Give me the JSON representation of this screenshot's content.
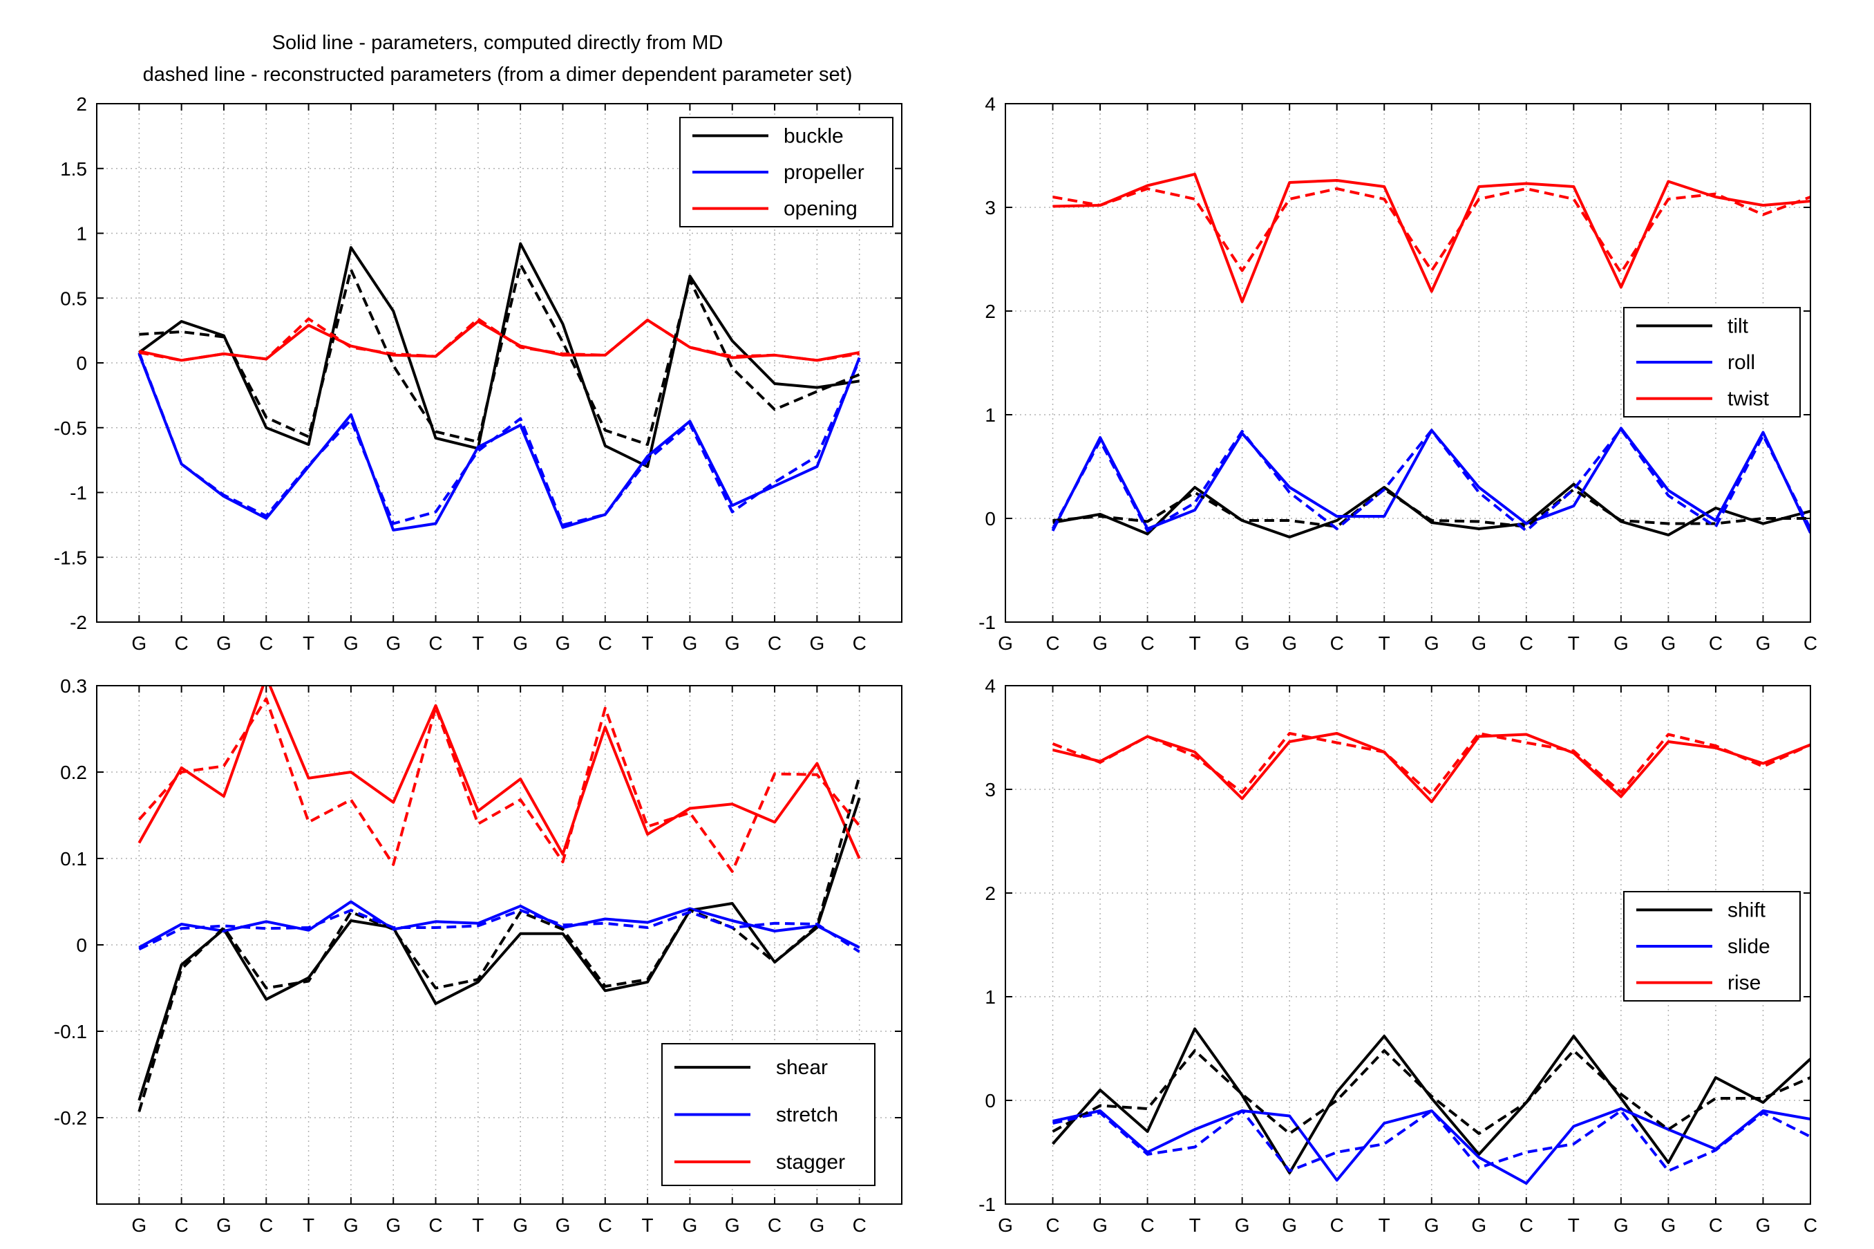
{
  "header": {
    "line1": "Solid line - parameters, computed directly from MD",
    "line2": "dashed line - reconstructed parameters (from a dimer dependent parameter set)"
  },
  "colors": {
    "black": "#000000",
    "blue": "#0000ff",
    "red": "#ff0000",
    "grid": "#b0b0b0"
  },
  "chart_data": [
    {
      "type": "line",
      "categories": [
        "G",
        "C",
        "G",
        "C",
        "T",
        "G",
        "G",
        "C",
        "T",
        "G",
        "G",
        "C",
        "T",
        "G",
        "G",
        "C",
        "G",
        "C"
      ],
      "x": [
        1,
        2,
        3,
        4,
        5,
        6,
        7,
        8,
        9,
        10,
        11,
        12,
        13,
        14,
        15,
        16,
        17,
        18
      ],
      "xlim": [
        0,
        19
      ],
      "ylim": [
        -2,
        2
      ],
      "yticks": [
        -2,
        -1.5,
        -1,
        -0.5,
        0,
        0.5,
        1,
        1.5,
        2
      ],
      "ytick_labels": [
        "-2",
        "-1.5",
        "-1",
        "-0.5",
        "0",
        "0.5",
        "1",
        "1.5",
        "2"
      ],
      "grid": true,
      "legend_position": "top-right",
      "series": [
        {
          "name": "buckle",
          "color": "#000000",
          "style": "solid",
          "values": [
            0.08,
            0.32,
            0.21,
            -0.5,
            -0.63,
            0.89,
            0.4,
            -0.58,
            -0.66,
            0.92,
            0.3,
            -0.64,
            -0.8,
            0.67,
            0.17,
            -0.16,
            -0.19,
            -0.14
          ]
        },
        {
          "name": "propeller",
          "color": "#0000ff",
          "style": "solid",
          "values": [
            0.07,
            -0.78,
            -1.03,
            -1.2,
            -0.8,
            -0.4,
            -1.29,
            -1.24,
            -0.65,
            -0.48,
            -1.27,
            -1.17,
            -0.72,
            -0.45,
            -1.1,
            -0.95,
            -0.8,
            0.04
          ]
        },
        {
          "name": "opening",
          "color": "#ff0000",
          "style": "solid",
          "values": [
            0.09,
            0.02,
            0.07,
            0.03,
            0.29,
            0.13,
            0.06,
            0.05,
            0.32,
            0.13,
            0.06,
            0.06,
            0.33,
            0.12,
            0.04,
            0.06,
            0.02,
            0.08
          ]
        },
        {
          "name": "",
          "color": "#000000",
          "style": "dashed",
          "values": [
            0.22,
            0.24,
            0.2,
            -0.42,
            -0.57,
            0.72,
            -0.02,
            -0.53,
            -0.61,
            0.76,
            0.16,
            -0.52,
            -0.63,
            0.64,
            -0.04,
            -0.36,
            -0.22,
            -0.09
          ]
        },
        {
          "name": "",
          "color": "#0000ff",
          "style": "dashed",
          "values": [
            0.08,
            -0.78,
            -1.02,
            -1.18,
            -0.79,
            -0.44,
            -1.24,
            -1.15,
            -0.68,
            -0.43,
            -1.25,
            -1.17,
            -0.75,
            -0.47,
            -1.15,
            -0.92,
            -0.72,
            0.02
          ]
        },
        {
          "name": "",
          "color": "#ff0000",
          "style": "dashed",
          "values": [
            0.08,
            0.02,
            0.07,
            0.03,
            0.34,
            0.12,
            0.07,
            0.05,
            0.34,
            0.12,
            0.07,
            0.06,
            0.33,
            0.12,
            0.05,
            0.06,
            0.02,
            0.07
          ]
        }
      ]
    },
    {
      "type": "line",
      "categories": [
        "G",
        "C",
        "G",
        "C",
        "T",
        "G",
        "G",
        "C",
        "T",
        "G",
        "G",
        "C",
        "T",
        "G",
        "G",
        "C",
        "G",
        "C"
      ],
      "x": [
        1,
        2,
        3,
        4,
        5,
        6,
        7,
        8,
        9,
        10,
        11,
        12,
        13,
        14,
        15,
        16,
        17,
        18
      ],
      "xlim": [
        1,
        18
      ],
      "ylim": [
        -1,
        4
      ],
      "yticks": [
        -1,
        0,
        1,
        2,
        3,
        4
      ],
      "ytick_labels": [
        "-1",
        "0",
        "1",
        "2",
        "3",
        "4"
      ],
      "grid": true,
      "legend_position": "right",
      "series": [
        {
          "name": "tilt",
          "color": "#000000",
          "style": "solid",
          "values": [
            null,
            -0.04,
            0.04,
            -0.15,
            0.3,
            -0.02,
            -0.18,
            -0.02,
            0.3,
            -0.04,
            -0.1,
            -0.05,
            0.33,
            -0.03,
            -0.16,
            0.1,
            -0.05,
            0.07
          ]
        },
        {
          "name": "roll",
          "color": "#0000ff",
          "style": "solid",
          "values": [
            null,
            -0.12,
            0.78,
            -0.1,
            0.08,
            0.82,
            0.3,
            0.02,
            0.02,
            0.85,
            0.3,
            -0.05,
            0.12,
            0.87,
            0.27,
            -0.02,
            0.83,
            -0.14
          ]
        },
        {
          "name": "twist",
          "color": "#ff0000",
          "style": "solid",
          "values": [
            null,
            3.01,
            3.02,
            3.21,
            3.32,
            2.09,
            3.24,
            3.26,
            3.2,
            2.19,
            3.2,
            3.23,
            3.2,
            2.23,
            3.25,
            3.1,
            3.02,
            3.06
          ]
        },
        {
          "name": "",
          "color": "#000000",
          "style": "dashed",
          "values": [
            null,
            -0.02,
            0.02,
            -0.03,
            0.25,
            -0.02,
            -0.02,
            -0.08,
            0.28,
            -0.02,
            -0.03,
            -0.08,
            0.28,
            -0.02,
            -0.05,
            -0.05,
            0.0,
            0.0
          ]
        },
        {
          "name": "",
          "color": "#0000ff",
          "style": "dashed",
          "values": [
            null,
            -0.1,
            0.75,
            -0.12,
            0.15,
            0.84,
            0.25,
            -0.1,
            0.28,
            0.85,
            0.25,
            -0.12,
            0.28,
            0.86,
            0.22,
            -0.08,
            0.8,
            -0.1
          ]
        },
        {
          "name": "",
          "color": "#ff0000",
          "style": "dashed",
          "values": [
            null,
            3.1,
            3.02,
            3.18,
            3.08,
            2.39,
            3.08,
            3.18,
            3.08,
            2.39,
            3.08,
            3.18,
            3.08,
            2.37,
            3.08,
            3.13,
            2.93,
            3.1
          ]
        }
      ]
    },
    {
      "type": "line",
      "categories": [
        "G",
        "C",
        "G",
        "C",
        "T",
        "G",
        "G",
        "C",
        "T",
        "G",
        "G",
        "C",
        "T",
        "G",
        "G",
        "C",
        "G",
        "C"
      ],
      "x": [
        1,
        2,
        3,
        4,
        5,
        6,
        7,
        8,
        9,
        10,
        11,
        12,
        13,
        14,
        15,
        16,
        17,
        18
      ],
      "xlim": [
        0,
        19
      ],
      "ylim": [
        -0.3,
        0.3
      ],
      "yticks": [
        -0.2,
        -0.1,
        0,
        0.1,
        0.2,
        0.3
      ],
      "ytick_labels": [
        "-0.2",
        "-0.1",
        "0",
        "0.1",
        "0.2",
        "0.3"
      ],
      "grid": true,
      "legend_position": "bottom-right",
      "series": [
        {
          "name": "shear",
          "color": "#000000",
          "style": "solid",
          "values": [
            -0.18,
            -0.023,
            0.018,
            -0.063,
            -0.038,
            0.028,
            0.02,
            -0.068,
            -0.043,
            0.013,
            0.013,
            -0.053,
            -0.043,
            0.04,
            0.048,
            -0.02,
            0.02,
            0.17
          ]
        },
        {
          "name": "stretch",
          "color": "#0000ff",
          "style": "solid",
          "values": [
            -0.003,
            0.024,
            0.016,
            0.027,
            0.017,
            0.05,
            0.018,
            0.027,
            0.025,
            0.045,
            0.02,
            0.03,
            0.026,
            0.042,
            0.028,
            0.016,
            0.022,
            -0.003
          ]
        },
        {
          "name": "stagger",
          "color": "#ff0000",
          "style": "solid",
          "values": [
            0.118,
            0.205,
            0.172,
            0.31,
            0.193,
            0.2,
            0.165,
            0.277,
            0.155,
            0.192,
            0.105,
            0.252,
            0.128,
            0.158,
            0.163,
            0.142,
            0.21,
            0.1
          ]
        },
        {
          "name": "",
          "color": "#000000",
          "style": "dashed",
          "values": [
            -0.193,
            -0.028,
            0.02,
            -0.05,
            -0.042,
            0.038,
            0.018,
            -0.05,
            -0.04,
            0.038,
            0.018,
            -0.048,
            -0.04,
            0.04,
            0.02,
            -0.02,
            0.022,
            0.195
          ]
        },
        {
          "name": "",
          "color": "#0000ff",
          "style": "dashed",
          "values": [
            -0.005,
            0.019,
            0.022,
            0.019,
            0.02,
            0.04,
            0.02,
            0.02,
            0.022,
            0.04,
            0.023,
            0.025,
            0.02,
            0.038,
            0.02,
            0.025,
            0.024,
            -0.008
          ]
        },
        {
          "name": "",
          "color": "#ff0000",
          "style": "dashed",
          "values": [
            0.145,
            0.2,
            0.207,
            0.285,
            0.142,
            0.168,
            0.093,
            0.275,
            0.14,
            0.168,
            0.096,
            0.274,
            0.137,
            0.153,
            0.085,
            0.198,
            0.197,
            0.138
          ]
        }
      ]
    },
    {
      "type": "line",
      "categories": [
        "G",
        "C",
        "G",
        "C",
        "T",
        "G",
        "G",
        "C",
        "T",
        "G",
        "G",
        "C",
        "T",
        "G",
        "G",
        "C",
        "G",
        "C"
      ],
      "x": [
        1,
        2,
        3,
        4,
        5,
        6,
        7,
        8,
        9,
        10,
        11,
        12,
        13,
        14,
        15,
        16,
        17,
        18
      ],
      "xlim": [
        1,
        18
      ],
      "ylim": [
        -1,
        4
      ],
      "yticks": [
        -1,
        0,
        1,
        2,
        3,
        4
      ],
      "ytick_labels": [
        "-1",
        "0",
        "1",
        "2",
        "3",
        "4"
      ],
      "grid": true,
      "legend_position": "right",
      "series": [
        {
          "name": "shift",
          "color": "#000000",
          "style": "solid",
          "values": [
            null,
            -0.42,
            0.1,
            -0.3,
            0.69,
            0.05,
            -0.7,
            0.08,
            0.62,
            0.02,
            -0.52,
            -0.02,
            0.62,
            0.02,
            -0.6,
            0.22,
            -0.02,
            0.4
          ]
        },
        {
          "name": "slide",
          "color": "#0000ff",
          "style": "solid",
          "values": [
            null,
            -0.2,
            -0.1,
            -0.5,
            -0.28,
            -0.1,
            -0.15,
            -0.77,
            -0.22,
            -0.1,
            -0.55,
            -0.8,
            -0.25,
            -0.08,
            -0.28,
            -0.47,
            -0.1,
            -0.18
          ]
        },
        {
          "name": "rise",
          "color": "#ff0000",
          "style": "solid",
          "values": [
            null,
            3.38,
            3.27,
            3.51,
            3.36,
            2.91,
            3.46,
            3.54,
            3.36,
            2.88,
            3.51,
            3.53,
            3.35,
            2.93,
            3.46,
            3.4,
            3.25,
            3.43
          ]
        },
        {
          "name": "",
          "color": "#000000",
          "style": "dashed",
          "values": [
            null,
            -0.3,
            -0.05,
            -0.08,
            0.48,
            0.06,
            -0.32,
            0.0,
            0.48,
            0.04,
            -0.32,
            -0.02,
            0.48,
            0.06,
            -0.28,
            0.02,
            0.02,
            0.22
          ]
        },
        {
          "name": "",
          "color": "#0000ff",
          "style": "dashed",
          "values": [
            null,
            -0.22,
            -0.12,
            -0.52,
            -0.45,
            -0.1,
            -0.68,
            -0.5,
            -0.42,
            -0.1,
            -0.65,
            -0.5,
            -0.42,
            -0.1,
            -0.68,
            -0.48,
            -0.12,
            -0.35
          ]
        },
        {
          "name": "",
          "color": "#ff0000",
          "style": "dashed",
          "values": [
            null,
            3.44,
            3.26,
            3.51,
            3.32,
            2.97,
            3.54,
            3.45,
            3.36,
            2.95,
            3.54,
            3.45,
            3.37,
            2.97,
            3.53,
            3.42,
            3.22,
            3.43
          ]
        }
      ]
    }
  ]
}
